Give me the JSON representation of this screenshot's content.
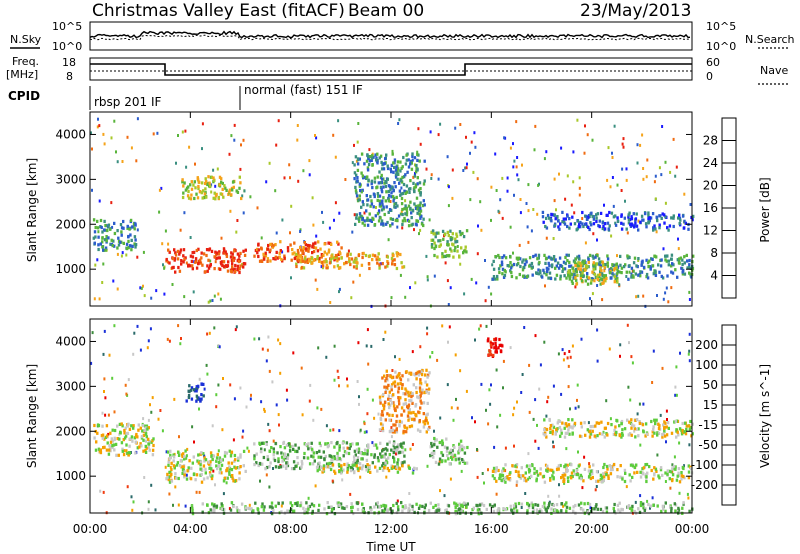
{
  "header": {
    "station": "Christmas Valley East (fitACF)",
    "beam": "Beam 00",
    "date": "23/May/2013"
  },
  "summary": {
    "nsky_label": "N.Sky",
    "nsky_ticks": [
      "10^5",
      "10^0"
    ],
    "nsearch_label": "N.Search",
    "nsearch_ticks": [
      "10^5",
      "10^0"
    ],
    "freq_label": "Freq.",
    "freq_unit": "[MHz]",
    "freq_ticks": [
      "18",
      "8"
    ],
    "nave_label": "Nave",
    "nave_ticks": [
      "60",
      "0"
    ],
    "cpid_label": "CPID",
    "cpid_segments": [
      {
        "label": "rbsp 201 IF",
        "start_hour": 0,
        "end_hour": 6
      },
      {
        "label": "normal (fast) 151 IF",
        "start_hour": 6,
        "end_hour": 24
      }
    ]
  },
  "chart_data": [
    {
      "type": "heatmap",
      "name": "power",
      "xlabel": "",
      "ylabel": "Slant Range [km]",
      "xlim": [
        0,
        24
      ],
      "ylim": [
        180,
        4500
      ],
      "yticks": [
        1000,
        2000,
        3000,
        4000
      ],
      "colorbar": {
        "label": "Power [dB]",
        "ticks": [
          "4",
          "8",
          "12",
          "16",
          "20",
          "24",
          "28"
        ],
        "colors": [
          "#1a1aff",
          "#2b5ccc",
          "#3a8f80",
          "#58b43a",
          "#a8c82a",
          "#f5a31a",
          "#f06b10",
          "#e82010"
        ]
      },
      "regions": [
        {
          "x": [
            0.1,
            1.8
          ],
          "y": [
            1450,
            2150
          ],
          "level": 2
        },
        {
          "x": [
            3.0,
            6.2
          ],
          "y": [
            950,
            1500
          ],
          "level": 7
        },
        {
          "x": [
            6.5,
            10.0
          ],
          "y": [
            1200,
            1650
          ],
          "level": 6
        },
        {
          "x": [
            8.0,
            12.5
          ],
          "y": [
            1050,
            1400
          ],
          "level": 5
        },
        {
          "x": [
            3.6,
            6.0
          ],
          "y": [
            2600,
            3100
          ],
          "level": 4
        },
        {
          "x": [
            10.5,
            13.3
          ],
          "y": [
            2000,
            3600
          ],
          "level": 2
        },
        {
          "x": [
            13.5,
            15.0
          ],
          "y": [
            1300,
            1900
          ],
          "level": 3
        },
        {
          "x": [
            16.0,
            24.0
          ],
          "y": [
            800,
            1350
          ],
          "level": 2
        },
        {
          "x": [
            19.0,
            21.0
          ],
          "y": [
            700,
            1200
          ],
          "level": 4
        },
        {
          "x": [
            18.0,
            24.0
          ],
          "y": [
            1900,
            2300
          ],
          "level": 1
        }
      ]
    },
    {
      "type": "heatmap",
      "name": "velocity",
      "xlabel": "Time UT",
      "ylabel": "Slant Range [km]",
      "xlim": [
        0,
        24
      ],
      "ylim": [
        180,
        4500
      ],
      "yticks": [
        1000,
        2000,
        3000,
        4000
      ],
      "xticks": [
        "00:00",
        "04:00",
        "08:00",
        "12:00",
        "16:00",
        "20:00",
        "00:00"
      ],
      "colorbar": {
        "label": "Velocity [m s^-1]",
        "ticks": [
          "200",
          "100",
          "50",
          "15",
          "-15",
          "-50",
          "-100",
          "-200"
        ],
        "colors": [
          "#1a30d8",
          "#2a6a6a",
          "#3c8c3c",
          "#5ccc3c",
          "#c8c8c8",
          "#f5a000",
          "#f07010",
          "#f03c10",
          "#e80000"
        ]
      },
      "regions": [
        {
          "x": [
            0.1,
            2.5
          ],
          "y": [
            1500,
            2200
          ],
          "level": 4
        },
        {
          "x": [
            3.0,
            6.2
          ],
          "y": [
            900,
            1600
          ],
          "level": 4
        },
        {
          "x": [
            6.5,
            12.5
          ],
          "y": [
            1200,
            1800
          ],
          "level": 3
        },
        {
          "x": [
            9.0,
            13.0
          ],
          "y": [
            1100,
            1300
          ],
          "level": 4
        },
        {
          "x": [
            3.8,
            4.5
          ],
          "y": [
            2700,
            3100
          ],
          "level": 0
        },
        {
          "x": [
            11.5,
            13.5
          ],
          "y": [
            2000,
            3400
          ],
          "level": 5
        },
        {
          "x": [
            13.5,
            15.0
          ],
          "y": [
            1300,
            1900
          ],
          "level": 3
        },
        {
          "x": [
            16.0,
            24.0
          ],
          "y": [
            900,
            1300
          ],
          "level": 4
        },
        {
          "x": [
            18.0,
            24.0
          ],
          "y": [
            1900,
            2300
          ],
          "level": 4
        },
        {
          "x": [
            15.8,
            16.4
          ],
          "y": [
            3700,
            4100
          ],
          "level": 8
        },
        {
          "x": [
            4.0,
            24.0
          ],
          "y": [
            200,
            450
          ],
          "level": 3
        }
      ]
    }
  ]
}
